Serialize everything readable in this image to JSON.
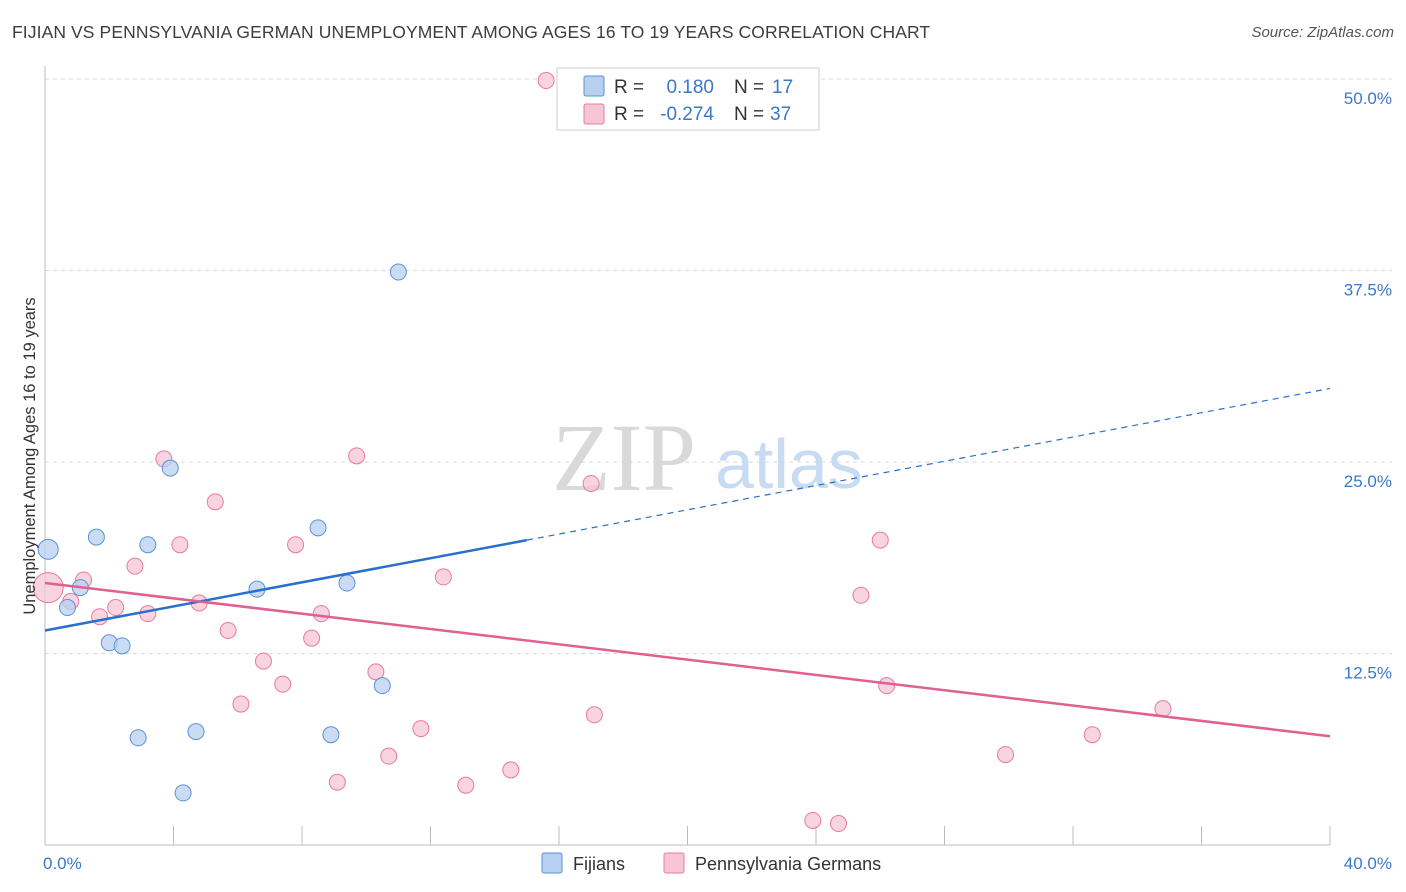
{
  "title": "FIJIAN VS PENNSYLVANIA GERMAN UNEMPLOYMENT AMONG AGES 16 TO 19 YEARS CORRELATION CHART",
  "source": "Source: ZipAtlas.com",
  "watermark": {
    "part1": "ZIP",
    "part2": "atlas"
  },
  "colors": {
    "fijians": "#5b93d6",
    "fijians_fill": "#b7d0f0",
    "fijians_line": "#2a6fce",
    "pa_germans": "#e87aa0",
    "pa_germans_fill": "#f6c6d6",
    "pa_germans_line": "#e0608f",
    "grid": "#d8d8d8",
    "tick_label": "#3b78c8"
  },
  "legend": {
    "rows": [
      {
        "r_label": "R =",
        "r_value": "0.180",
        "n_label": "N =",
        "n_value": "17"
      },
      {
        "r_label": "R =",
        "r_value": "-0.274",
        "n_label": "N =",
        "n_value": "37"
      }
    ]
  },
  "bottom_legend": [
    "Fijians",
    "Pennsylvania Germans"
  ],
  "chart_data": {
    "type": "scatter",
    "title": "FIJIAN VS PENNSYLVANIA GERMAN UNEMPLOYMENT AMONG AGES 16 TO 19 YEARS CORRELATION CHART",
    "xlabel": "",
    "ylabel": "Unemployment Among Ages 16 to 19 years",
    "xlim": [
      0,
      40
    ],
    "ylim": [
      0,
      50
    ],
    "x_tick_labels": [
      "0.0%",
      "40.0%"
    ],
    "y_ticks": [
      12.5,
      25.0,
      37.5,
      50.0
    ],
    "y_tick_labels": [
      "12.5%",
      "25.0%",
      "37.5%",
      "50.0%"
    ],
    "grid": true,
    "legend_position": "top-center",
    "series": [
      {
        "name": "Fijians",
        "r": 0.18,
        "n": 17,
        "trend": {
          "x": [
            0,
            15
          ],
          "y": [
            14.0,
            19.9
          ],
          "extended_to": [
            40,
            29.8
          ]
        },
        "points": [
          {
            "x": 0.1,
            "y": 19.3,
            "s": 10
          },
          {
            "x": 0.7,
            "y": 15.5,
            "s": 8
          },
          {
            "x": 1.1,
            "y": 16.8,
            "s": 8
          },
          {
            "x": 1.6,
            "y": 20.1,
            "s": 8
          },
          {
            "x": 2.0,
            "y": 13.2,
            "s": 8
          },
          {
            "x": 2.4,
            "y": 13.0,
            "s": 8
          },
          {
            "x": 2.9,
            "y": 7.0,
            "s": 8
          },
          {
            "x": 3.2,
            "y": 19.6,
            "s": 8
          },
          {
            "x": 3.9,
            "y": 24.6,
            "s": 8
          },
          {
            "x": 4.3,
            "y": 3.4,
            "s": 8
          },
          {
            "x": 4.7,
            "y": 7.4,
            "s": 8
          },
          {
            "x": 6.6,
            "y": 16.7,
            "s": 8
          },
          {
            "x": 8.5,
            "y": 20.7,
            "s": 8
          },
          {
            "x": 8.9,
            "y": 7.2,
            "s": 8
          },
          {
            "x": 9.4,
            "y": 17.1,
            "s": 8
          },
          {
            "x": 10.5,
            "y": 10.4,
            "s": 8
          },
          {
            "x": 11.0,
            "y": 37.4,
            "s": 8
          }
        ]
      },
      {
        "name": "Pennsylvania Germans",
        "r": -0.274,
        "n": 37,
        "trend": {
          "x": [
            0,
            40
          ],
          "y": [
            17.1,
            7.1
          ]
        },
        "points": [
          {
            "x": 0.1,
            "y": 16.8,
            "s": 15
          },
          {
            "x": 0.8,
            "y": 15.9,
            "s": 8
          },
          {
            "x": 1.2,
            "y": 17.3,
            "s": 8
          },
          {
            "x": 1.7,
            "y": 14.9,
            "s": 8
          },
          {
            "x": 2.2,
            "y": 15.5,
            "s": 8
          },
          {
            "x": 2.8,
            "y": 18.2,
            "s": 8
          },
          {
            "x": 3.2,
            "y": 15.1,
            "s": 8
          },
          {
            "x": 3.7,
            "y": 25.2,
            "s": 8
          },
          {
            "x": 4.2,
            "y": 19.6,
            "s": 8
          },
          {
            "x": 4.8,
            "y": 15.8,
            "s": 8
          },
          {
            "x": 5.3,
            "y": 22.4,
            "s": 8
          },
          {
            "x": 5.7,
            "y": 14.0,
            "s": 8
          },
          {
            "x": 6.1,
            "y": 9.2,
            "s": 8
          },
          {
            "x": 6.8,
            "y": 12.0,
            "s": 8
          },
          {
            "x": 7.4,
            "y": 10.5,
            "s": 8
          },
          {
            "x": 7.8,
            "y": 19.6,
            "s": 8
          },
          {
            "x": 8.3,
            "y": 13.5,
            "s": 8
          },
          {
            "x": 8.6,
            "y": 15.1,
            "s": 8
          },
          {
            "x": 9.1,
            "y": 4.1,
            "s": 8
          },
          {
            "x": 9.7,
            "y": 25.4,
            "s": 8
          },
          {
            "x": 10.3,
            "y": 11.3,
            "s": 8
          },
          {
            "x": 10.7,
            "y": 5.8,
            "s": 8
          },
          {
            "x": 11.7,
            "y": 7.6,
            "s": 8
          },
          {
            "x": 12.4,
            "y": 17.5,
            "s": 8
          },
          {
            "x": 13.1,
            "y": 3.9,
            "s": 8
          },
          {
            "x": 14.5,
            "y": 4.9,
            "s": 8
          },
          {
            "x": 15.6,
            "y": 49.9,
            "s": 8
          },
          {
            "x": 17.0,
            "y": 23.6,
            "s": 8
          },
          {
            "x": 17.1,
            "y": 8.5,
            "s": 8
          },
          {
            "x": 23.9,
            "y": 1.6,
            "s": 8
          },
          {
            "x": 24.7,
            "y": 1.4,
            "s": 8
          },
          {
            "x": 25.4,
            "y": 16.3,
            "s": 8
          },
          {
            "x": 26.0,
            "y": 19.9,
            "s": 8
          },
          {
            "x": 26.2,
            "y": 10.4,
            "s": 8
          },
          {
            "x": 29.9,
            "y": 5.9,
            "s": 8
          },
          {
            "x": 32.6,
            "y": 7.2,
            "s": 8
          },
          {
            "x": 34.8,
            "y": 8.9,
            "s": 8
          }
        ]
      }
    ]
  }
}
